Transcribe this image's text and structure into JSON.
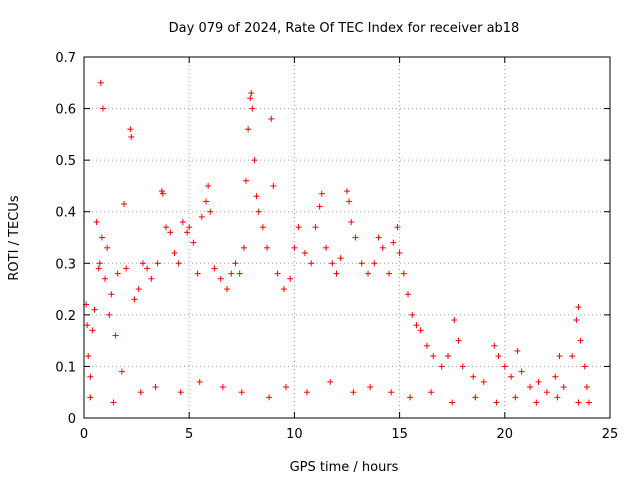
{
  "chart_data": {
    "type": "scatter",
    "title": "Day 079 of 2024, Rate Of TEC Index for receiver ab18",
    "xlabel": "GPS time / hours",
    "ylabel": "ROTI / TECUs",
    "xlim": [
      0,
      25
    ],
    "ylim": [
      0,
      0.7
    ],
    "xticks": [
      0,
      5,
      10,
      15,
      20,
      25
    ],
    "xtick_labels": [
      "0",
      "5",
      "10",
      "15",
      "20",
      "25"
    ],
    "yticks": [
      0,
      0.1,
      0.2,
      0.3,
      0.4,
      0.5,
      0.6,
      0.7
    ],
    "ytick_labels": [
      "0",
      "0.1",
      "0.2",
      "0.3",
      "0.4",
      "0.5",
      "0.6",
      "0.7"
    ],
    "grid": true,
    "marker": "+",
    "color": "#ff0000",
    "series": [
      {
        "name": "ROTI",
        "points": [
          [
            0.1,
            0.22
          ],
          [
            0.15,
            0.18
          ],
          [
            0.2,
            0.12
          ],
          [
            0.3,
            0.08
          ],
          [
            0.4,
            0.17
          ],
          [
            0.5,
            0.21
          ],
          [
            0.6,
            0.38
          ],
          [
            0.7,
            0.29
          ],
          [
            0.75,
            0.3
          ],
          [
            0.8,
            0.65
          ],
          [
            0.85,
            0.35
          ],
          [
            0.9,
            0.6
          ],
          [
            1.0,
            0.27
          ],
          [
            1.1,
            0.33
          ],
          [
            1.2,
            0.2
          ],
          [
            1.3,
            0.24
          ],
          [
            1.5,
            0.16
          ],
          [
            1.6,
            0.28
          ],
          [
            1.8,
            0.09
          ],
          [
            2.0,
            0.29
          ],
          [
            1.9,
            0.415
          ],
          [
            2.2,
            0.56
          ],
          [
            2.25,
            0.545
          ],
          [
            2.4,
            0.23
          ],
          [
            2.6,
            0.25
          ],
          [
            2.8,
            0.3
          ],
          [
            3.0,
            0.29
          ],
          [
            3.2,
            0.27
          ],
          [
            3.5,
            0.3
          ],
          [
            3.7,
            0.44
          ],
          [
            3.75,
            0.435
          ],
          [
            3.9,
            0.37
          ],
          [
            4.1,
            0.36
          ],
          [
            4.3,
            0.32
          ],
          [
            4.5,
            0.3
          ],
          [
            4.7,
            0.38
          ],
          [
            4.9,
            0.36
          ],
          [
            5.0,
            0.37
          ],
          [
            5.2,
            0.34
          ],
          [
            5.4,
            0.28
          ],
          [
            5.6,
            0.39
          ],
          [
            5.8,
            0.42
          ],
          [
            5.9,
            0.45
          ],
          [
            6.0,
            0.4
          ],
          [
            6.2,
            0.29
          ],
          [
            6.5,
            0.27
          ],
          [
            6.8,
            0.25
          ],
          [
            7.0,
            0.28
          ],
          [
            7.2,
            0.3
          ],
          [
            7.4,
            0.28
          ],
          [
            7.6,
            0.33
          ],
          [
            7.7,
            0.46
          ],
          [
            7.8,
            0.56
          ],
          [
            7.9,
            0.62
          ],
          [
            7.95,
            0.63
          ],
          [
            8.0,
            0.6
          ],
          [
            8.1,
            0.5
          ],
          [
            8.2,
            0.43
          ],
          [
            8.3,
            0.4
          ],
          [
            8.5,
            0.37
          ],
          [
            8.7,
            0.33
          ],
          [
            8.9,
            0.58
          ],
          [
            9.0,
            0.45
          ],
          [
            9.2,
            0.28
          ],
          [
            9.5,
            0.25
          ],
          [
            9.8,
            0.27
          ],
          [
            10.0,
            0.33
          ],
          [
            10.2,
            0.37
          ],
          [
            10.5,
            0.32
          ],
          [
            10.8,
            0.3
          ],
          [
            11.0,
            0.37
          ],
          [
            11.2,
            0.41
          ],
          [
            11.3,
            0.435
          ],
          [
            11.5,
            0.33
          ],
          [
            11.8,
            0.3
          ],
          [
            12.0,
            0.28
          ],
          [
            12.2,
            0.31
          ],
          [
            12.5,
            0.44
          ],
          [
            12.6,
            0.42
          ],
          [
            12.7,
            0.38
          ],
          [
            12.9,
            0.35
          ],
          [
            13.2,
            0.3
          ],
          [
            13.5,
            0.28
          ],
          [
            13.8,
            0.3
          ],
          [
            14.0,
            0.35
          ],
          [
            14.2,
            0.33
          ],
          [
            14.5,
            0.28
          ],
          [
            14.7,
            0.34
          ],
          [
            14.9,
            0.37
          ],
          [
            15.0,
            0.32
          ],
          [
            15.2,
            0.28
          ],
          [
            15.4,
            0.24
          ],
          [
            15.6,
            0.2
          ],
          [
            15.8,
            0.18
          ],
          [
            16.0,
            0.17
          ],
          [
            16.3,
            0.14
          ],
          [
            16.6,
            0.12
          ],
          [
            17.0,
            0.1
          ],
          [
            17.3,
            0.12
          ],
          [
            17.6,
            0.19
          ],
          [
            17.8,
            0.15
          ],
          [
            18.0,
            0.1
          ],
          [
            18.5,
            0.08
          ],
          [
            19.0,
            0.07
          ],
          [
            19.5,
            0.14
          ],
          [
            19.7,
            0.12
          ],
          [
            20.0,
            0.1
          ],
          [
            20.3,
            0.08
          ],
          [
            20.6,
            0.13
          ],
          [
            20.8,
            0.09
          ],
          [
            21.2,
            0.06
          ],
          [
            21.6,
            0.07
          ],
          [
            22.0,
            0.05
          ],
          [
            22.4,
            0.08
          ],
          [
            22.6,
            0.12
          ],
          [
            22.8,
            0.06
          ],
          [
            23.2,
            0.12
          ],
          [
            23.4,
            0.19
          ],
          [
            23.5,
            0.215
          ],
          [
            23.6,
            0.15
          ],
          [
            23.8,
            0.1
          ],
          [
            23.9,
            0.06
          ],
          [
            24.0,
            0.03
          ],
          [
            0.3,
            0.04
          ],
          [
            1.4,
            0.03
          ],
          [
            2.7,
            0.05
          ],
          [
            3.4,
            0.06
          ],
          [
            4.6,
            0.05
          ],
          [
            5.5,
            0.07
          ],
          [
            6.6,
            0.06
          ],
          [
            7.5,
            0.05
          ],
          [
            8.8,
            0.04
          ],
          [
            9.6,
            0.06
          ],
          [
            10.6,
            0.05
          ],
          [
            11.7,
            0.07
          ],
          [
            12.8,
            0.05
          ],
          [
            13.6,
            0.06
          ],
          [
            14.6,
            0.05
          ],
          [
            15.5,
            0.04
          ],
          [
            16.5,
            0.05
          ],
          [
            17.5,
            0.03
          ],
          [
            18.6,
            0.04
          ],
          [
            19.6,
            0.03
          ],
          [
            20.5,
            0.04
          ],
          [
            21.5,
            0.03
          ],
          [
            22.5,
            0.04
          ],
          [
            23.5,
            0.03
          ]
        ]
      }
    ]
  }
}
